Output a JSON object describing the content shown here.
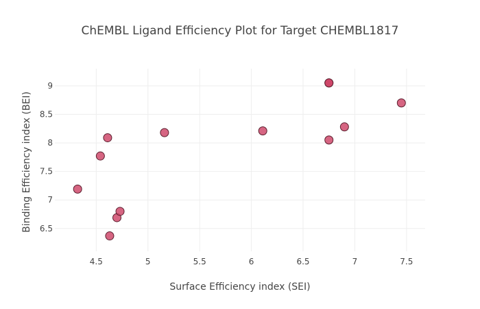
{
  "chart_data": {
    "type": "scatter",
    "title": "ChEMBL Ligand Efficiency Plot for Target CHEMBL1817",
    "xlabel": "Surface Efficiency index (SEI)",
    "ylabel": "Binding Efficiency index (BEI)",
    "xlim": [
      4.1,
      7.68
    ],
    "ylim": [
      6.1,
      9.3
    ],
    "xticks": [
      4.5,
      5,
      5.5,
      6,
      6.5,
      7,
      7.5
    ],
    "xtick_labels": [
      "4.5",
      "5",
      "5.5",
      "6",
      "6.5",
      "7",
      "7.5"
    ],
    "yticks": [
      6.5,
      7,
      7.5,
      8,
      8.5,
      9
    ],
    "ytick_labels": [
      "6.5",
      "7",
      "7.5",
      "8",
      "8.5",
      "9"
    ],
    "grid": true,
    "colors": {
      "marker": "#cc3e63",
      "marker_edge": "#5a1f2e",
      "grid": "#eeeeee",
      "text": "#444444"
    },
    "points": [
      {
        "x": 4.32,
        "y": 7.19
      },
      {
        "x": 4.54,
        "y": 7.77
      },
      {
        "x": 4.61,
        "y": 8.09
      },
      {
        "x": 4.63,
        "y": 6.37
      },
      {
        "x": 4.7,
        "y": 6.69
      },
      {
        "x": 4.73,
        "y": 6.8
      },
      {
        "x": 5.16,
        "y": 8.18
      },
      {
        "x": 6.11,
        "y": 8.21
      },
      {
        "x": 6.75,
        "y": 8.05
      },
      {
        "x": 6.75,
        "y": 9.05
      },
      {
        "x": 6.75,
        "y": 9.05
      },
      {
        "x": 6.9,
        "y": 8.28
      },
      {
        "x": 7.45,
        "y": 8.7
      }
    ]
  }
}
